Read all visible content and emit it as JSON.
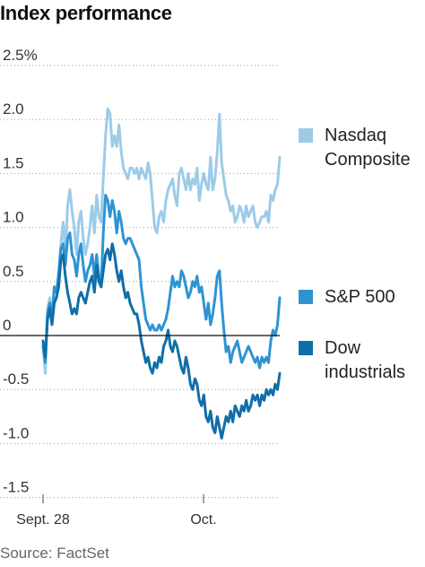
{
  "title": "Index performance",
  "source": "Source: FactSet",
  "chart_data": {
    "type": "line",
    "title": "Index performance",
    "xlabel": "",
    "ylabel": "",
    "x_tick_labels": [
      "Sept. 28",
      "Oct."
    ],
    "y_tick_labels": [
      "2.5%",
      "2.0",
      "1.5",
      "1.0",
      "0.5",
      "0",
      "-0.5",
      "-1.0",
      "-1.5"
    ],
    "y_tick_values": [
      2.5,
      2.0,
      1.5,
      1.0,
      0.5,
      0,
      -0.5,
      -1.0,
      -1.5
    ],
    "ylim": [
      -1.5,
      2.5
    ],
    "grid": "horizontal",
    "zero_line": true,
    "legend_position": "right",
    "series": [
      {
        "name": "Nasdaq Composite",
        "legend_lines": [
          "Nasdaq",
          "Composite"
        ],
        "color": "#9ccbe8",
        "values": [
          -0.1,
          -0.35,
          0.25,
          0.35,
          0.2,
          0.45,
          0.4,
          0.6,
          0.85,
          1.05,
          0.75,
          1.2,
          1.35,
          1.15,
          1.0,
          0.75,
          1.05,
          1.15,
          0.9,
          0.75,
          0.85,
          1.0,
          1.2,
          0.95,
          1.3,
          1.1,
          1.05,
          1.45,
          1.85,
          2.1,
          2.05,
          1.75,
          1.85,
          1.75,
          1.95,
          1.7,
          1.55,
          1.5,
          1.45,
          1.55,
          1.55,
          1.5,
          1.55,
          1.45,
          1.55,
          1.5,
          1.45,
          1.6,
          1.5,
          1.25,
          1.0,
          0.95,
          1.1,
          1.15,
          1.05,
          1.25,
          1.35,
          1.4,
          1.45,
          1.3,
          1.2,
          1.5,
          1.55,
          1.45,
          1.35,
          1.5,
          1.35,
          1.45,
          1.4,
          1.55,
          1.25,
          1.4,
          1.5,
          1.4,
          1.35,
          1.65,
          1.35,
          1.45,
          1.7,
          2.05,
          1.6,
          1.45,
          1.3,
          1.25,
          1.15,
          1.2,
          1.05,
          1.1,
          1.2,
          1.15,
          1.05,
          1.2,
          1.1,
          1.15,
          1.2,
          1.05,
          1.0,
          1.05,
          1.1,
          1.1,
          1.15,
          1.05,
          1.3,
          1.25,
          1.35,
          1.4,
          1.65
        ]
      },
      {
        "name": "S&P 500",
        "legend_lines": [
          "S&P 500"
        ],
        "color": "#2f93d3",
        "values": [
          -0.1,
          -0.25,
          0.2,
          0.3,
          0.15,
          0.45,
          0.4,
          0.55,
          0.8,
          0.85,
          0.65,
          0.9,
          0.95,
          0.75,
          0.7,
          0.55,
          0.75,
          0.85,
          0.65,
          0.5,
          0.6,
          0.65,
          0.75,
          0.55,
          0.75,
          0.55,
          0.45,
          0.95,
          1.3,
          1.25,
          1.1,
          1.25,
          1.15,
          0.95,
          1.15,
          1.05,
          0.9,
          0.85,
          0.9,
          0.9,
          0.85,
          0.8,
          0.75,
          0.7,
          0.45,
          0.3,
          0.15,
          0.1,
          0.05,
          0.1,
          0.05,
          0.05,
          0.1,
          0.05,
          0.1,
          0.15,
          0.25,
          0.4,
          0.55,
          0.45,
          0.5,
          0.45,
          0.6,
          0.55,
          0.45,
          0.35,
          0.4,
          0.5,
          0.45,
          0.55,
          0.4,
          0.45,
          0.3,
          0.15,
          0.3,
          0.1,
          0.2,
          0.35,
          0.55,
          0.6,
          0.3,
          0.05,
          -0.15,
          -0.1,
          -0.25,
          -0.15,
          -0.1,
          -0.05,
          -0.15,
          -0.25,
          -0.2,
          -0.15,
          -0.1,
          -0.15,
          -0.2,
          -0.25,
          -0.2,
          -0.3,
          -0.2,
          -0.25,
          -0.2,
          -0.25,
          -0.05,
          0.05,
          0.0,
          0.1,
          0.35
        ]
      },
      {
        "name": "Dow industrials",
        "legend_lines": [
          "Dow",
          "industrials"
        ],
        "color": "#0f6ea8",
        "values": [
          -0.05,
          -0.2,
          0.15,
          0.25,
          0.1,
          0.3,
          0.35,
          0.45,
          0.7,
          0.75,
          0.55,
          0.4,
          0.3,
          0.2,
          0.25,
          0.2,
          0.35,
          0.4,
          0.35,
          0.3,
          0.4,
          0.5,
          0.55,
          0.4,
          0.65,
          0.5,
          0.45,
          0.6,
          0.75,
          0.8,
          0.7,
          0.85,
          0.75,
          0.6,
          0.5,
          0.6,
          0.45,
          0.35,
          0.4,
          0.3,
          0.25,
          0.2,
          0.2,
          0.1,
          -0.05,
          -0.15,
          -0.25,
          -0.2,
          -0.3,
          -0.35,
          -0.25,
          -0.3,
          -0.2,
          -0.25,
          -0.1,
          -0.05,
          0.05,
          -0.1,
          -0.15,
          -0.05,
          -0.1,
          -0.2,
          -0.3,
          -0.35,
          -0.2,
          -0.3,
          -0.45,
          -0.5,
          -0.4,
          -0.45,
          -0.6,
          -0.65,
          -0.55,
          -0.75,
          -0.8,
          -0.7,
          -0.85,
          -0.9,
          -0.75,
          -0.85,
          -0.95,
          -0.85,
          -0.75,
          -0.8,
          -0.7,
          -0.8,
          -0.65,
          -0.7,
          -0.75,
          -0.65,
          -0.7,
          -0.6,
          -0.7,
          -0.65,
          -0.55,
          -0.6,
          -0.55,
          -0.65,
          -0.55,
          -0.6,
          -0.5,
          -0.55,
          -0.5,
          -0.55,
          -0.45,
          -0.5,
          -0.35
        ]
      }
    ]
  }
}
